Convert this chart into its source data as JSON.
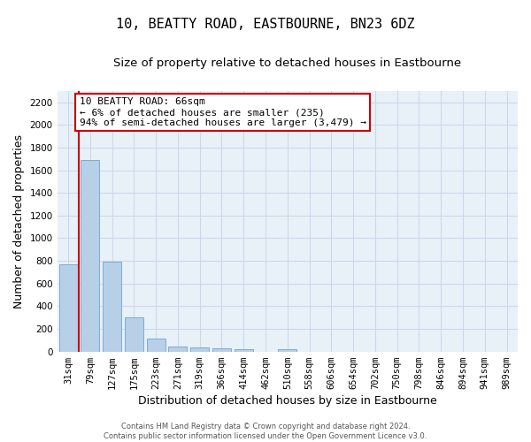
{
  "title": "10, BEATTY ROAD, EASTBOURNE, BN23 6DZ",
  "subtitle": "Size of property relative to detached houses in Eastbourne",
  "xlabel": "Distribution of detached houses by size in Eastbourne",
  "ylabel": "Number of detached properties",
  "bar_labels": [
    "31sqm",
    "79sqm",
    "127sqm",
    "175sqm",
    "223sqm",
    "271sqm",
    "319sqm",
    "366sqm",
    "414sqm",
    "462sqm",
    "510sqm",
    "558sqm",
    "606sqm",
    "654sqm",
    "702sqm",
    "750sqm",
    "798sqm",
    "846sqm",
    "894sqm",
    "941sqm",
    "989sqm"
  ],
  "bar_values": [
    770,
    1690,
    795,
    300,
    115,
    45,
    33,
    25,
    22,
    0,
    22,
    0,
    0,
    0,
    0,
    0,
    0,
    0,
    0,
    0,
    0
  ],
  "bar_color": "#b8cfe8",
  "bar_edge_color": "#7aadd4",
  "grid_color": "#c8d8ea",
  "background_color": "#e8f0f8",
  "vline_color": "#cc0000",
  "vline_x": 0.5,
  "annotation_text": "10 BEATTY ROAD: 66sqm\n← 6% of detached houses are smaller (235)\n94% of semi-detached houses are larger (3,479) →",
  "annotation_box_facecolor": "#ffffff",
  "annotation_box_edgecolor": "#cc0000",
  "ylim": [
    0,
    2300
  ],
  "yticks": [
    0,
    200,
    400,
    600,
    800,
    1000,
    1200,
    1400,
    1600,
    1800,
    2000,
    2200
  ],
  "footer_line1": "Contains HM Land Registry data © Crown copyright and database right 2024.",
  "footer_line2": "Contains public sector information licensed under the Open Government Licence v3.0.",
  "title_fontsize": 11,
  "subtitle_fontsize": 9.5,
  "tick_fontsize": 7.5,
  "ylabel_fontsize": 9,
  "xlabel_fontsize": 9,
  "annotation_fontsize": 8,
  "footer_fontsize": 6
}
